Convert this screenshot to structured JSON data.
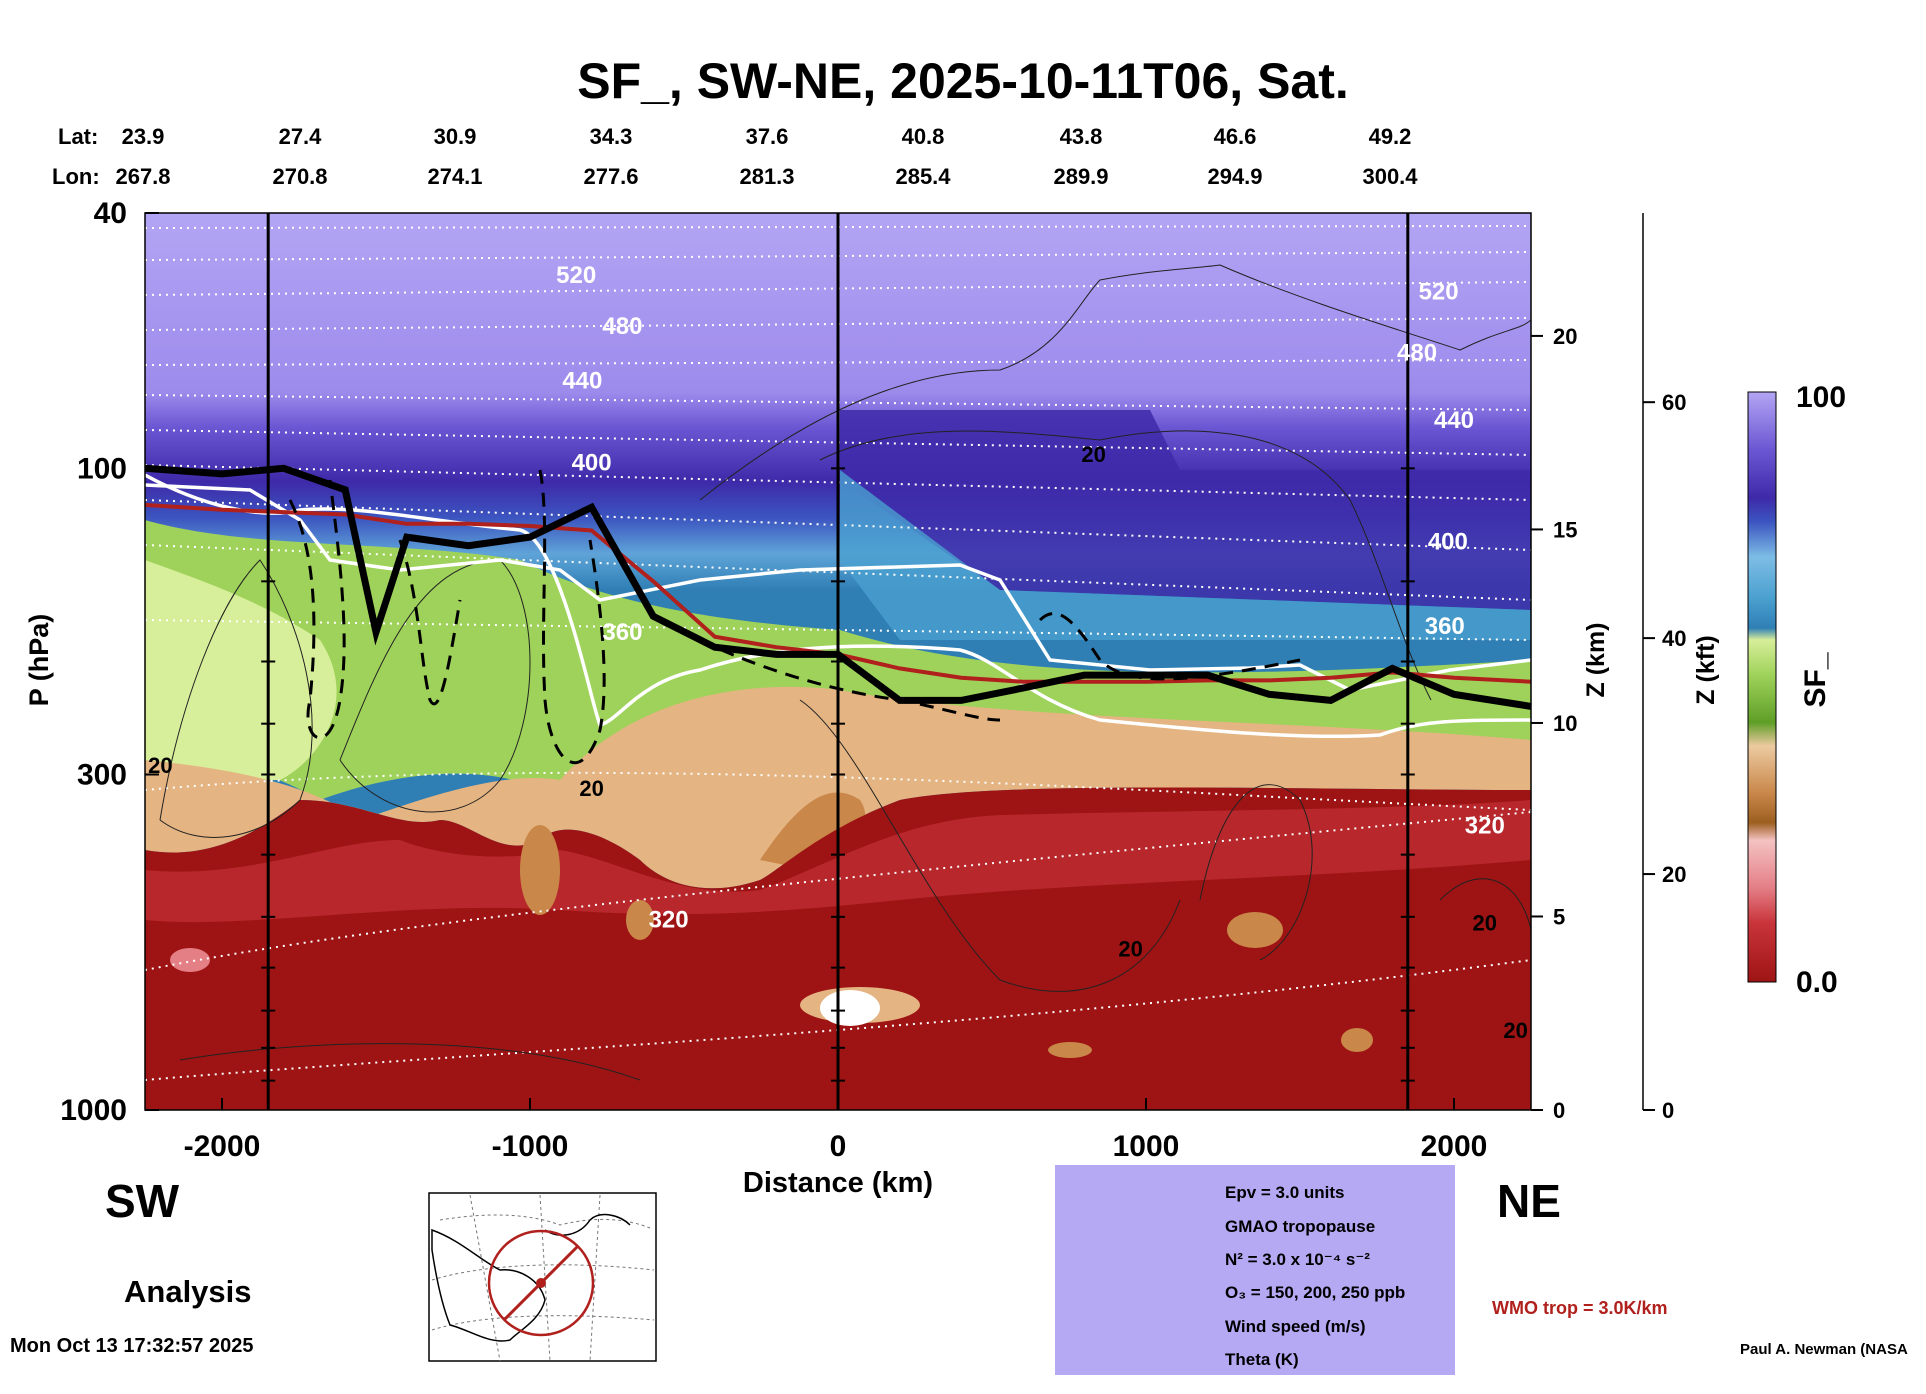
{
  "title": "SF_, SW-NE, 2025-10-11T06, Sat.",
  "coords": {
    "lat_label": "Lat:",
    "lon_label": "Lon:",
    "lat": [
      "23.9",
      "27.4",
      "30.9",
      "34.3",
      "37.6",
      "40.8",
      "43.8",
      "46.6",
      "49.2"
    ],
    "lon": [
      "267.8",
      "270.8",
      "274.1",
      "277.6",
      "281.3",
      "285.4",
      "289.9",
      "294.9",
      "300.4"
    ]
  },
  "labels": {
    "sw": "SW",
    "ne": "NE",
    "analysis": "Analysis",
    "timestamp": "Mon Oct 13 17:32:57 2025",
    "credit": "Paul A. Newman (NASA",
    "wmo": "WMO trop = 3.0K/km"
  },
  "legend": {
    "epv": "Epv = 3.0 units",
    "tropopause": "GMAO tropopause",
    "n2": "N² = 3.0 x 10⁻⁴ s⁻²",
    "o3": "O₃ = 150, 200, 250 ppb",
    "wind": "Wind speed (m/s)",
    "theta": "Theta (K)"
  },
  "colors": {
    "stratosphere_light": "#b3a5f4",
    "stratosphere_dark": "#3e2aa9",
    "blue_mid": "#2f7fb5",
    "green": "#7fbf3f",
    "tan": "#c9874a",
    "red": "#9e1414",
    "wmo_trop": "#b0201c",
    "legend_bg": "#b6a9f3"
  },
  "chart_data": {
    "type": "heatmap",
    "title": "SF_, SW-NE, 2025-10-11T06, Sat.",
    "xlabel": "Distance (km)",
    "ylabel": "P (hPa)",
    "right_axis_1_label": "Z (km)",
    "right_axis_2_label": "Z (kft)",
    "colorbar_label": "SF_",
    "xlim": [
      -2250,
      2250
    ],
    "ylim": [
      1000,
      40
    ],
    "x_ticks": [
      -2000,
      -1000,
      0,
      1000,
      2000
    ],
    "x_tick_labels": [
      "-2000",
      "-1000",
      "0",
      "1000",
      "2000"
    ],
    "y_ticks": [
      40,
      100,
      300,
      1000
    ],
    "y_tick_labels": [
      "40",
      "100",
      "300",
      "1000"
    ],
    "z_km_ticks": [
      0,
      5,
      10,
      15,
      20
    ],
    "z_km_tick_labels": [
      "0",
      "5",
      "10",
      "15",
      "20"
    ],
    "z_kft_ticks": [
      0,
      20,
      40,
      60
    ],
    "z_kft_tick_labels": [
      "0",
      "20",
      "40",
      "60"
    ],
    "colorbar_range": [
      0.0,
      100
    ],
    "colorbar_tick_labels": [
      "100",
      "0.0"
    ],
    "vertical_lines_km": [
      -1850,
      0,
      1850
    ],
    "theta_contours": [
      {
        "label": "520",
        "x": -850,
        "p": 50
      },
      {
        "label": "480",
        "x": -700,
        "p": 60
      },
      {
        "label": "440",
        "x": -830,
        "p": 73
      },
      {
        "label": "400",
        "x": -800,
        "p": 98
      },
      {
        "label": "360",
        "x": -700,
        "p": 180
      },
      {
        "label": "320",
        "x": -550,
        "p": 505
      },
      {
        "label": "520",
        "x": 1950,
        "p": 53
      },
      {
        "label": "480",
        "x": 1880,
        "p": 66
      },
      {
        "label": "440",
        "x": 2000,
        "p": 84
      },
      {
        "label": "400",
        "x": 1980,
        "p": 130
      },
      {
        "label": "360",
        "x": 1970,
        "p": 176
      },
      {
        "label": "320",
        "x": 2100,
        "p": 360
      }
    ],
    "wind_labels": [
      {
        "label": "20",
        "x": 830,
        "p": 95
      },
      {
        "label": "20",
        "x": -2200,
        "p": 290
      },
      {
        "label": "20",
        "x": -800,
        "p": 315
      },
      {
        "label": "20",
        "x": 950,
        "p": 560
      },
      {
        "label": "20",
        "x": 2100,
        "p": 510
      },
      {
        "label": "20",
        "x": 2200,
        "p": 750
      }
    ],
    "tropopause_gmao_hpa": {
      "x": [
        -2250,
        -2000,
        -1800,
        -1600,
        -1500,
        -1400,
        -1200,
        -1000,
        -800,
        -600,
        -400,
        -200,
        0,
        200,
        400,
        600,
        800,
        1000,
        1200,
        1400,
        1600,
        1800,
        2000,
        2250
      ],
      "p": [
        100,
        102,
        100,
        108,
        180,
        128,
        132,
        128,
        115,
        170,
        190,
        195,
        195,
        230,
        230,
        220,
        210,
        210,
        210,
        225,
        230,
        205,
        225,
        235
      ]
    },
    "wmo_tropopause_hpa": {
      "x": [
        -2250,
        -2000,
        -1800,
        -1600,
        -1400,
        -1200,
        -1000,
        -800,
        -600,
        -400,
        -200,
        0,
        200,
        400,
        600,
        800,
        1000,
        1200,
        1400,
        1600,
        1800,
        2000,
        2250
      ],
      "p": [
        114,
        116,
        117,
        118,
        122,
        122,
        123,
        125,
        150,
        183,
        190,
        195,
        205,
        212,
        215,
        215,
        215,
        214,
        214,
        212,
        208,
        212,
        215
      ]
    }
  }
}
